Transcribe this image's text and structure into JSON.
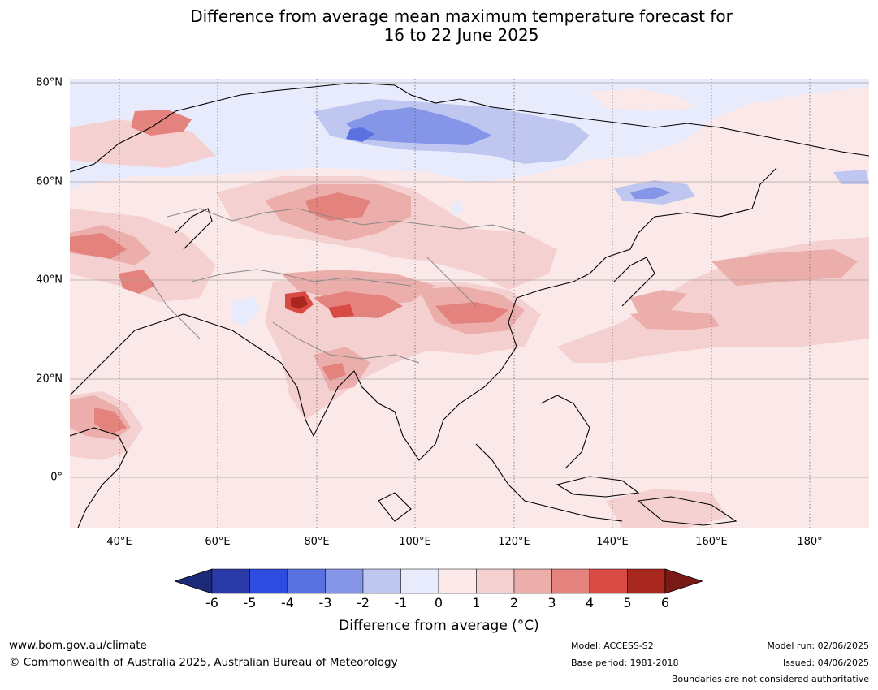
{
  "title": {
    "line1": "Difference from average mean maximum temperature forecast for",
    "line2": "16 to 22 June 2025"
  },
  "map": {
    "projection": "Plate Carree",
    "lon_range": [
      30,
      192
    ],
    "lat_range": [
      -10,
      81
    ],
    "lat_ticks": [
      "80°N",
      "60°N",
      "40°N",
      "20°N",
      "0°"
    ],
    "lon_ticks": [
      "40°E",
      "60°E",
      "80°E",
      "100°E",
      "120°E",
      "140°E",
      "160°E",
      "180°"
    ],
    "background_anomaly_class": "0 to 1",
    "regions": [
      {
        "name": "arctic-cool-band",
        "anomaly_class": "-1 to 0"
      },
      {
        "name": "siberia-cool-core",
        "anomaly_class": "-3 to -2"
      },
      {
        "name": "kazakhstan-mongolia-warm",
        "anomaly_class": "2 to 3"
      },
      {
        "name": "tibet-warm",
        "anomaly_class": "3 to 4"
      },
      {
        "name": "kashmir-hot-spot",
        "anomaly_class": "5 to 6"
      },
      {
        "name": "north-pacific-warm-band",
        "anomaly_class": "1 to 2"
      },
      {
        "name": "horn-of-africa-warm",
        "anomaly_class": "2 to 3"
      }
    ]
  },
  "colorbar": {
    "ticks": [
      "-6",
      "-5",
      "-4",
      "-3",
      "-2",
      "-1",
      "0",
      "1",
      "2",
      "3",
      "4",
      "5",
      "6"
    ],
    "colors": [
      "#2a3ba8",
      "#2f4ce0",
      "#5a71e0",
      "#8596e8",
      "#bfc7f0",
      "#e8ebfb",
      "#fbe9e9",
      "#f4d1d0",
      "#ecaeab",
      "#e4837d",
      "#d94a44",
      "#a8271f"
    ],
    "extend_low_color": "#1c2a78",
    "extend_high_color": "#7a1a14",
    "label": "Difference from average (°C)"
  },
  "footer": {
    "website": "www.bom.gov.au/climate",
    "copyright": "© Commonwealth of Australia 2025, Australian Bureau of Meteorology",
    "model": "Model: ACCESS-S2",
    "base_period": "Base period: 1981-2018",
    "model_run": "Model run: 02/06/2025",
    "issued": "Issued: 04/06/2025",
    "disclaimer": "Boundaries are not considered authoritative"
  }
}
